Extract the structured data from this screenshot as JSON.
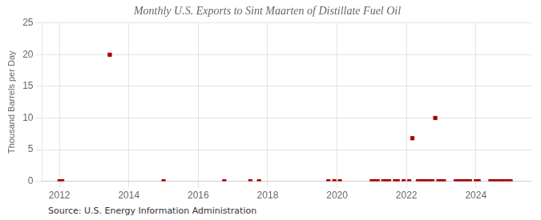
{
  "chart_data": {
    "type": "scatter",
    "title": "Monthly U.S. Exports to Sint Maarten of Distillate Fuel Oil",
    "ylabel": "Thousand Barrels per Day",
    "source": "Source: U.S. Energy Information Administration",
    "color": "#aa0000",
    "marker": "square",
    "grid": true,
    "xlim": [
      2011.5,
      2025.6
    ],
    "xticks": [
      2012,
      2014,
      2016,
      2018,
      2020,
      2022,
      2024
    ],
    "ylim": [
      0,
      25
    ],
    "yticks": [
      0,
      5,
      10,
      15,
      20,
      25
    ],
    "x": [
      2012.0,
      2012.08,
      2013.45,
      2015.0,
      2016.75,
      2017.5,
      2017.75,
      2019.75,
      2019.92,
      2020.08,
      2021.0,
      2021.08,
      2021.17,
      2021.33,
      2021.42,
      2021.5,
      2021.67,
      2021.75,
      2021.92,
      2022.08,
      2022.17,
      2022.33,
      2022.42,
      2022.5,
      2022.58,
      2022.67,
      2022.75,
      2022.83,
      2022.92,
      2023.0,
      2023.08,
      2023.42,
      2023.5,
      2023.58,
      2023.67,
      2023.75,
      2023.83,
      2024.0,
      2024.08,
      2024.42,
      2024.5,
      2024.58,
      2024.67,
      2024.75,
      2024.83,
      2024.92,
      2025.0
    ],
    "values": [
      0.0,
      0.0,
      20.0,
      0.0,
      0.0,
      0.0,
      0.0,
      0.0,
      0.0,
      0.0,
      0.0,
      0.0,
      0.0,
      0.0,
      0.0,
      0.0,
      0.0,
      0.0,
      0.0,
      0.0,
      6.8,
      0.0,
      0.0,
      0.0,
      0.0,
      0.0,
      0.0,
      10.0,
      0.0,
      0.0,
      0.0,
      0.0,
      0.0,
      0.0,
      0.0,
      0.0,
      0.0,
      0.0,
      0.0,
      0.0,
      0.0,
      0.0,
      0.0,
      0.0,
      0.0,
      0.0,
      0.0
    ]
  }
}
